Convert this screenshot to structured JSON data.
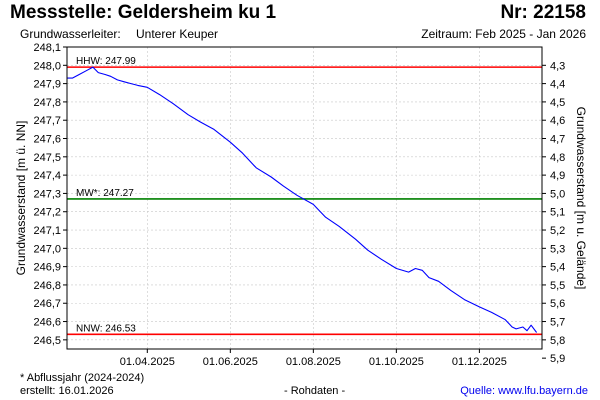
{
  "header": {
    "title": "Messstelle: Geldersheim ku 1",
    "number": "Nr: 22158",
    "aquifer_label": "Grundwasserleiter:",
    "aquifer_value": "Unterer Keuper",
    "period": "Zeitraum: Feb 2025 - Jan 2026"
  },
  "footer": {
    "footnote": "* Abflussjahr (2024-2024)",
    "created": "erstellt:  16.01.2026",
    "raw": "- Rohdaten -",
    "source": "Quelle: www.lfu.bayern.de"
  },
  "colors": {
    "series": "#0000ff",
    "hhw": "#ff0000",
    "mw": "#008000",
    "nnw": "#ff0000",
    "grid": "#c8c8c8"
  },
  "chart_data": {
    "type": "line",
    "ylabel": "Grundwasserstand [m ü. NN]",
    "y2label": "Grundwasserstand [m u. Gelände]",
    "ylim": [
      246.45,
      248.1
    ],
    "y2lim": [
      4.2,
      5.85
    ],
    "xlim": [
      "2025-02-01",
      "2026-01-16"
    ],
    "y_ticks": [
      "248,1",
      "248,0",
      "247,9",
      "247,8",
      "247,7",
      "247,6",
      "247,5",
      "247,4",
      "247,3",
      "247,2",
      "247,1",
      "247,0",
      "246,9",
      "246,8",
      "246,7",
      "246,6",
      "246,5"
    ],
    "y2_ticks": [
      "4,3",
      "4,4",
      "4,5",
      "4,6",
      "4,7",
      "4,8",
      "4,9",
      "5,0",
      "5,1",
      "5,2",
      "5,3",
      "5,4",
      "5,5",
      "5,6",
      "5,7",
      "5,8",
      "5,9"
    ],
    "x_ticks": [
      {
        "date": "2025-04-01",
        "label": "01.04.2025"
      },
      {
        "date": "2025-06-01",
        "label": "01.06.2025"
      },
      {
        "date": "2025-08-01",
        "label": "01.08.2025"
      },
      {
        "date": "2025-10-01",
        "label": "01.10.2025"
      },
      {
        "date": "2025-12-01",
        "label": "01.12.2025"
      }
    ],
    "reference_lines": [
      {
        "key": "hhw",
        "label": "HHW: 247.99",
        "value": 247.99
      },
      {
        "key": "mw",
        "label": "MW*: 247.27",
        "value": 247.27
      },
      {
        "key": "nnw",
        "label": "NNW: 246.53",
        "value": 246.53
      }
    ],
    "series": [
      {
        "x": [
          "2025-02-01",
          "2025-02-05",
          "2025-02-10",
          "2025-02-15",
          "2025-02-20",
          "2025-02-24",
          "2025-03-01",
          "2025-03-05",
          "2025-03-10",
          "2025-03-15",
          "2025-03-20",
          "2025-03-25",
          "2025-04-01",
          "2025-04-10",
          "2025-04-20",
          "2025-05-01",
          "2025-05-10",
          "2025-05-20",
          "2025-06-01",
          "2025-06-10",
          "2025-06-20",
          "2025-07-01",
          "2025-07-10",
          "2025-07-20",
          "2025-08-01",
          "2025-08-10",
          "2025-08-20",
          "2025-09-01",
          "2025-09-10",
          "2025-09-20",
          "2025-10-01",
          "2025-10-10",
          "2025-10-15",
          "2025-10-20",
          "2025-10-25",
          "2025-11-01",
          "2025-11-10",
          "2025-11-20",
          "2025-12-01",
          "2025-12-10",
          "2025-12-20",
          "2025-12-25",
          "2025-12-28",
          "2026-01-02",
          "2026-01-05",
          "2026-01-08",
          "2026-01-12"
        ],
        "values": [
          247.93,
          247.93,
          247.95,
          247.97,
          247.99,
          247.96,
          247.95,
          247.94,
          247.92,
          247.91,
          247.9,
          247.89,
          247.88,
          247.84,
          247.79,
          247.73,
          247.69,
          247.65,
          247.58,
          247.52,
          247.44,
          247.39,
          247.34,
          247.29,
          247.24,
          247.17,
          247.12,
          247.05,
          246.99,
          246.94,
          246.89,
          246.87,
          246.89,
          246.88,
          246.84,
          246.82,
          246.77,
          246.72,
          246.68,
          246.65,
          246.61,
          246.57,
          246.56,
          246.57,
          246.55,
          246.58,
          246.54
        ]
      }
    ]
  }
}
